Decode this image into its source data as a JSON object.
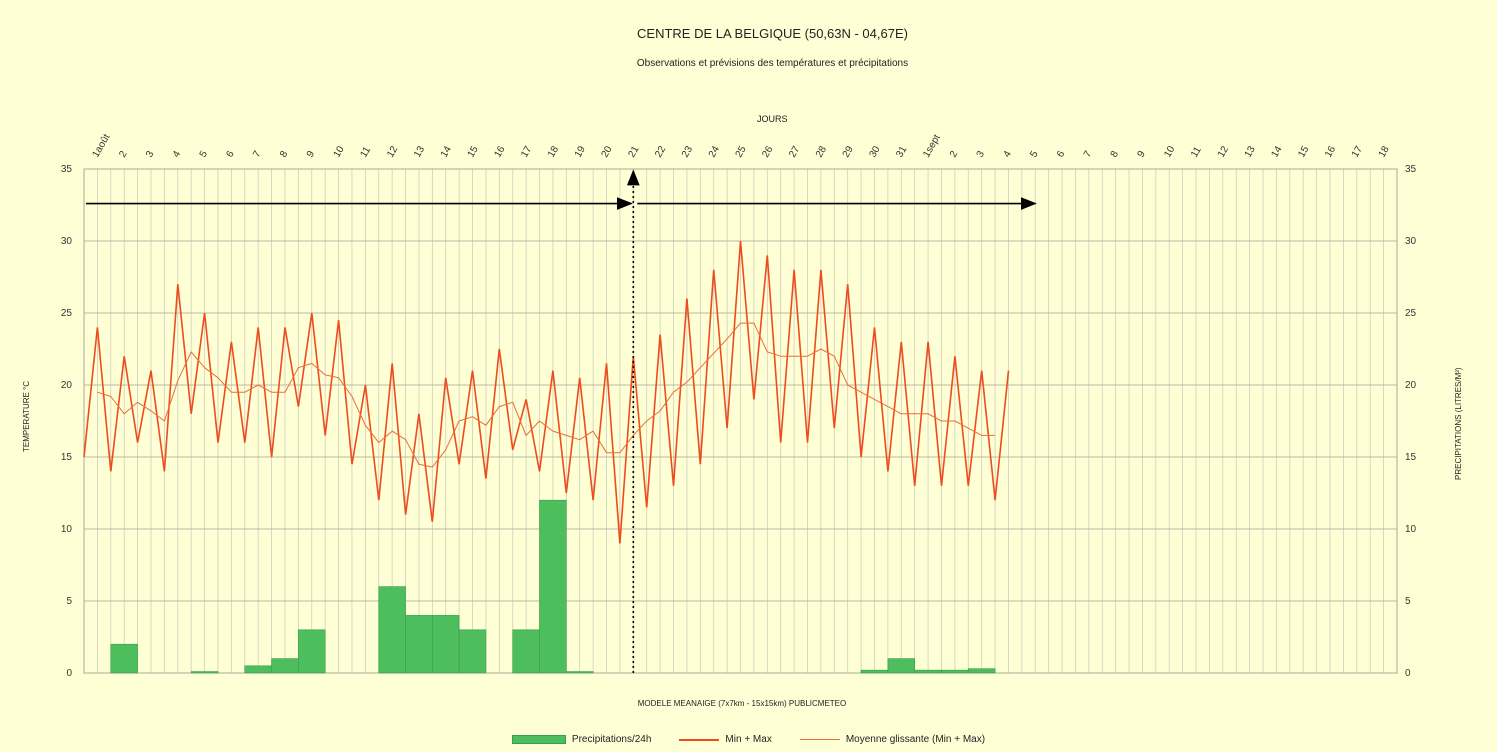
{
  "chart_data": {
    "type": "bar+line",
    "title": "CENTRE DE LA BELGIQUE (50,63N - 04,67E)",
    "subtitle": "Observations et prévisions des températures et précipitations",
    "top_axis_label": "JOURS",
    "ylabel_left": "TEMPERATURE °C",
    "ylabel_right": "PRECIPITATIONS (LITRES/M²)",
    "xlabel": "MODELE MEANAIGE (7x7km - 15x15km) PUBLICMETEO",
    "ylim": [
      0,
      35
    ],
    "y_ticks": [
      "0",
      "5",
      "10",
      "15",
      "20",
      "25",
      "30",
      "35"
    ],
    "day_labels": [
      "1août",
      "2",
      "3",
      "4",
      "5",
      "6",
      "7",
      "8",
      "9",
      "10",
      "11",
      "12",
      "13",
      "14",
      "15",
      "16",
      "17",
      "18",
      "19",
      "20",
      "21",
      "22",
      "23",
      "24",
      "25",
      "26",
      "27",
      "28",
      "29",
      "30",
      "31",
      "1sept",
      "2",
      "3",
      "4",
      "5",
      "6",
      "7",
      "8",
      "9",
      "10",
      "11",
      "12",
      "13",
      "14",
      "15",
      "16",
      "17",
      "18"
    ],
    "today_index": 21,
    "observation_end_index": 21,
    "forecast_end_index": 36,
    "series": [
      {
        "name": "Min + Max",
        "color": "#ee4b1f",
        "values": [
          15,
          24,
          14,
          22,
          16,
          21,
          14,
          27,
          18,
          25,
          16,
          23,
          16,
          24,
          15,
          24,
          18.5,
          25,
          16.5,
          24.5,
          14.5,
          20,
          12,
          21.5,
          11,
          18,
          10.5,
          20.5,
          14.5,
          21,
          13.5,
          22.5,
          15.5,
          19,
          14,
          21,
          12.5,
          20.5,
          12,
          21.5,
          9,
          22,
          11.5,
          23.5,
          13,
          26,
          14.5,
          28,
          17,
          30,
          19,
          29,
          16,
          28,
          16,
          28,
          17,
          27,
          15,
          24,
          14,
          23,
          13,
          23,
          13,
          22,
          13,
          21,
          12,
          21
        ]
      },
      {
        "name": "Moyenne glissante (Min + Max)",
        "color": "#ef6a37",
        "values": [
          null,
          19.5,
          19.2,
          18,
          18.8,
          18.2,
          17.5,
          20.3,
          22.3,
          21.2,
          20.5,
          19.5,
          19.5,
          20,
          19.5,
          19.5,
          21.2,
          21.5,
          20.7,
          20.5,
          19.2,
          17.2,
          16,
          16.8,
          16.2,
          14.5,
          14.3,
          15.5,
          17.5,
          17.8,
          17.2,
          18.5,
          18.8,
          16.5,
          17.5,
          16.8,
          16.5,
          16.2,
          16.8,
          15.3,
          15.3,
          16.5,
          17.5,
          18.2,
          19.5,
          20.2,
          21.2,
          22.2,
          23.2,
          24.3,
          24.3,
          22.3,
          22,
          22,
          22,
          22.5,
          22,
          20,
          19.5,
          19,
          18.5,
          18,
          18,
          18,
          17.5,
          17.5,
          17,
          16.5,
          16.5
        ]
      },
      {
        "name": "Precipitations/24h",
        "color": "#4dbd5d",
        "values": [
          0,
          2,
          0,
          0,
          0.1,
          0,
          0.5,
          1,
          3,
          0,
          0,
          6,
          4,
          4,
          3,
          0,
          3,
          12,
          0.1,
          0,
          0,
          0,
          0,
          0,
          0,
          0,
          0,
          0,
          0,
          0.2,
          1,
          0.2,
          0.2,
          0.3,
          0,
          0,
          0,
          0,
          0,
          0,
          0,
          0,
          0,
          0,
          0,
          0,
          0,
          0,
          0
        ]
      }
    ],
    "legend": [
      "Precipitations/24h",
      "Min + Max",
      "Moyenne glissante (Min + Max)"
    ],
    "legend_position": "bottom",
    "grid": true
  }
}
